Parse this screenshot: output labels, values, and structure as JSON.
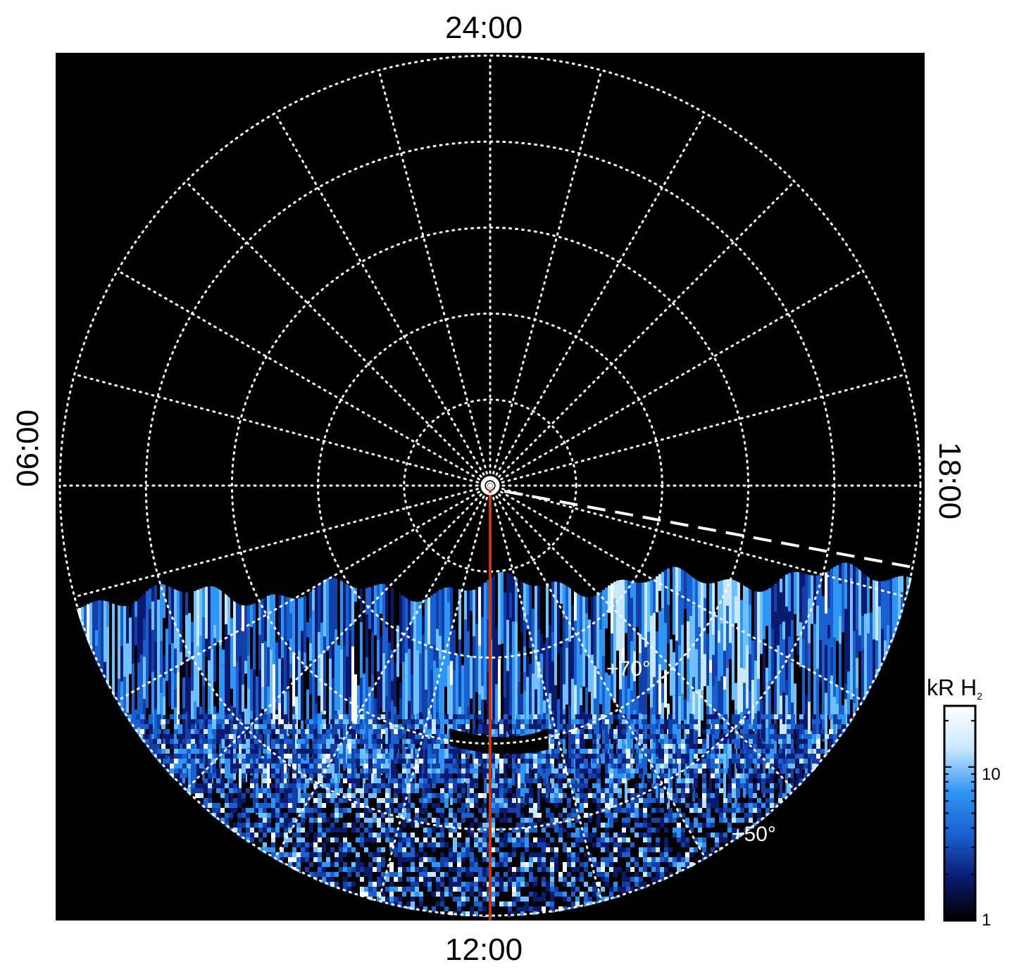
{
  "chart_data": {
    "type": "heatmap",
    "projection": "polar (local time vs latitude)",
    "local_time_labels": {
      "top": "24:00",
      "bottom": "12:00",
      "left": "06:00",
      "right": "18:00"
    },
    "latitude_rings_deg": [
      90,
      80,
      70,
      60,
      50,
      40
    ],
    "ring_annotations": [
      "+70°",
      "+50°"
    ],
    "meridian_spacing_hours": 1,
    "colorbar": {
      "label_main": "kR H",
      "label_sub": "2",
      "scale": "log",
      "range": [
        1,
        25
      ],
      "ticks": [
        "10",
        "1"
      ],
      "colors": [
        "#000000",
        "#0a1a6e",
        "#1a60d0",
        "#2f95f5",
        "#c8e8ff",
        "#ffffff"
      ]
    },
    "data_coverage": "dayside emission, below the ~+45° horizon at 06:00–18:00 sides",
    "reference_line_color": "#c23a14",
    "dashed_line_color": "#ffffff",
    "grid_on": true
  }
}
